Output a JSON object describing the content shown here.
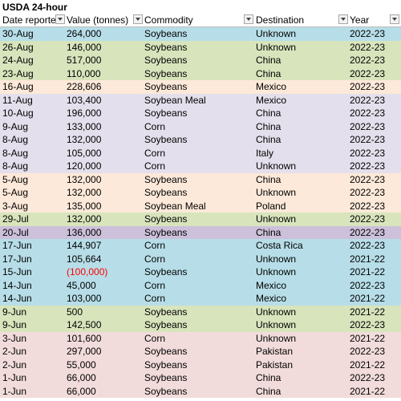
{
  "title": "USDA 24-hour",
  "headers": [
    "Date reporte",
    "Value (tonnes)",
    "Commodity",
    "Destination",
    "Year"
  ],
  "rows": [
    {
      "date": "30-Aug",
      "value": "264,000",
      "commodity": "Soybeans",
      "destination": "Unknown",
      "year": "2022-23",
      "color": "#b7dee8"
    },
    {
      "date": "26-Aug",
      "value": "146,000",
      "commodity": "Soybeans",
      "destination": "Unknown",
      "year": "2022-23",
      "color": "#d8e4bc"
    },
    {
      "date": "24-Aug",
      "value": "517,000",
      "commodity": "Soybeans",
      "destination": "China",
      "year": "2022-23",
      "color": "#d8e4bc"
    },
    {
      "date": "23-Aug",
      "value": "110,000",
      "commodity": "Soybeans",
      "destination": "China",
      "year": "2022-23",
      "color": "#d8e4bc"
    },
    {
      "date": "16-Aug",
      "value": "228,606",
      "commodity": "Soybeans",
      "destination": "Mexico",
      "year": "2022-23",
      "color": "#fde9d9"
    },
    {
      "date": "11-Aug",
      "value": "103,400",
      "commodity": "Soybean Meal",
      "destination": "Mexico",
      "year": "2022-23",
      "color": "#e4dfec"
    },
    {
      "date": "10-Aug",
      "value": "196,000",
      "commodity": "Soybeans",
      "destination": "China",
      "year": "2022-23",
      "color": "#e4dfec"
    },
    {
      "date": "9-Aug",
      "value": "133,000",
      "commodity": "Corn",
      "destination": "China",
      "year": "2022-23",
      "color": "#e4dfec"
    },
    {
      "date": "8-Aug",
      "value": "132,000",
      "commodity": "Soybeans",
      "destination": "China",
      "year": "2022-23",
      "color": "#e4dfec"
    },
    {
      "date": "8-Aug",
      "value": "105,000",
      "commodity": "Corn",
      "destination": "Italy",
      "year": "2022-23",
      "color": "#e4dfec"
    },
    {
      "date": "8-Aug",
      "value": "120,000",
      "commodity": "Corn",
      "destination": "Unknown",
      "year": "2022-23",
      "color": "#e4dfec"
    },
    {
      "date": "5-Aug",
      "value": "132,000",
      "commodity": "Soybeans",
      "destination": "China",
      "year": "2022-23",
      "color": "#fde9d9"
    },
    {
      "date": "5-Aug",
      "value": "132,000",
      "commodity": "Soybeans",
      "destination": "Unknown",
      "year": "2022-23",
      "color": "#fde9d9"
    },
    {
      "date": "3-Aug",
      "value": "135,000",
      "commodity": "Soybean Meal",
      "destination": "Poland",
      "year": "2022-23",
      "color": "#fde9d9"
    },
    {
      "date": "29-Jul",
      "value": "132,000",
      "commodity": "Soybeans",
      "destination": "Unknown",
      "year": "2022-23",
      "color": "#d8e4bc"
    },
    {
      "date": "20-Jul",
      "value": "136,000",
      "commodity": "Soybeans",
      "destination": "China",
      "year": "2022-23",
      "color": "#ccc0da"
    },
    {
      "date": "17-Jun",
      "value": "144,907",
      "commodity": "Corn",
      "destination": "Costa Rica",
      "year": "2022-23",
      "color": "#b7dee8"
    },
    {
      "date": "17-Jun",
      "value": "105,664",
      "commodity": "Corn",
      "destination": "Unknown",
      "year": "2021-22",
      "color": "#b7dee8"
    },
    {
      "date": "15-Jun",
      "value": "(100,000)",
      "negative": true,
      "commodity": "Soybeans",
      "destination": "Unknown",
      "year": "2021-22",
      "color": "#b7dee8"
    },
    {
      "date": "14-Jun",
      "value": "45,000",
      "commodity": "Corn",
      "destination": "Mexico",
      "year": "2022-23",
      "color": "#b7dee8"
    },
    {
      "date": "14-Jun",
      "value": "103,000",
      "commodity": "Corn",
      "destination": "Mexico",
      "year": "2021-22",
      "color": "#b7dee8"
    },
    {
      "date": "9-Jun",
      "value": "500",
      "commodity": "Soybeans",
      "destination": "Unknown",
      "year": "2021-22",
      "color": "#d8e4bc"
    },
    {
      "date": "9-Jun",
      "value": "142,500",
      "commodity": "Soybeans",
      "destination": "Unknown",
      "year": "2022-23",
      "color": "#d8e4bc"
    },
    {
      "date": "3-Jun",
      "value": "101,600",
      "commodity": "Corn",
      "destination": "Unknown",
      "year": "2021-22",
      "color": "#f2dcdb"
    },
    {
      "date": "2-Jun",
      "value": "297,000",
      "commodity": "Soybeans",
      "destination": "Pakistan",
      "year": "2022-23",
      "color": "#f2dcdb"
    },
    {
      "date": "2-Jun",
      "value": "55,000",
      "commodity": "Soybeans",
      "destination": "Pakistan",
      "year": "2021-22",
      "color": "#f2dcdb"
    },
    {
      "date": "1-Jun",
      "value": "66,000",
      "commodity": "Soybeans",
      "destination": "China",
      "year": "2022-23",
      "color": "#f2dcdb"
    },
    {
      "date": "1-Jun",
      "value": "66,000",
      "commodity": "Soybeans",
      "destination": "China",
      "year": "2021-22",
      "color": "#f2dcdb"
    }
  ]
}
